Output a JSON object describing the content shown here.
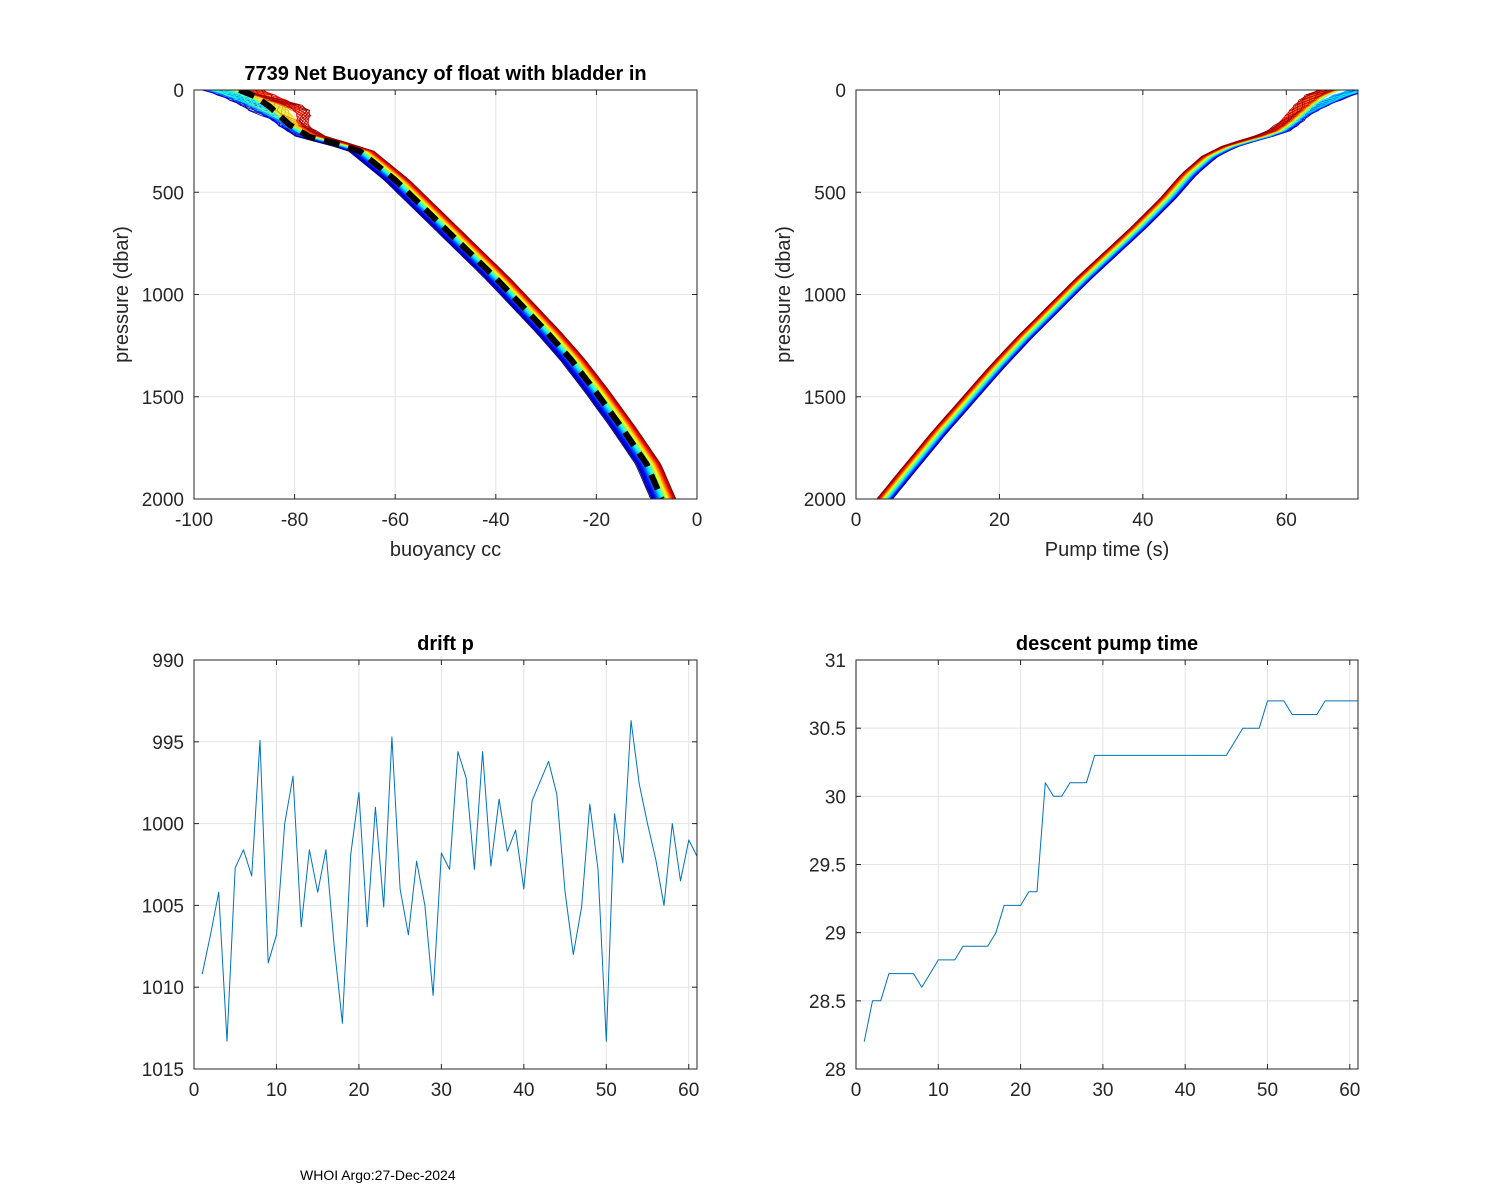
{
  "footer": "WHOI Argo:27-Dec-2024",
  "chart_data": [
    {
      "id": "buoyancy",
      "type": "line",
      "title": "7739 Net Buoyancy of float with bladder in",
      "xlabel": "buoyancy cc",
      "ylabel": "pressure (dbar)",
      "xlim": [
        -100,
        0
      ],
      "ylim": [
        0,
        2000
      ],
      "y_reversed": true,
      "xticks": [
        -100,
        -80,
        -60,
        -40,
        -20,
        0
      ],
      "yticks": [
        0,
        500,
        1000,
        1500,
        2000
      ],
      "xtick_labels": [
        "-100",
        "-80",
        "-60",
        "-40",
        "-20",
        "0"
      ],
      "ytick_labels": [
        "0",
        "500",
        "1000",
        "1500",
        "2000"
      ],
      "grid": true,
      "profile_colormap": "jet",
      "profile_count": 61,
      "mean_profile": {
        "x": [
          -91,
          -88,
          -85,
          -81,
          -77,
          -72,
          -67,
          -64,
          -60,
          -55,
          -50,
          -45,
          -40,
          -35,
          -30,
          -25,
          -20,
          -15,
          -10,
          -7
        ],
        "y": [
          0,
          30,
          80,
          170,
          230,
          260,
          300,
          360,
          440,
          560,
          680,
          800,
          920,
          1050,
          1180,
          1320,
          1480,
          1650,
          1830,
          2000
        ]
      }
    },
    {
      "id": "pumptime",
      "type": "line",
      "title": "",
      "xlabel": "Pump time (s)",
      "ylabel": "pressure (dbar)",
      "xlim": [
        0,
        70
      ],
      "ylim": [
        0,
        2000
      ],
      "y_reversed": true,
      "xticks": [
        0,
        20,
        40,
        60
      ],
      "yticks": [
        0,
        500,
        1000,
        1500,
        2000
      ],
      "xtick_labels": [
        "0",
        "20",
        "40",
        "60"
      ],
      "ytick_labels": [
        "0",
        "500",
        "1000",
        "1500",
        "2000"
      ],
      "grid": true,
      "profile_colormap": "jet",
      "profile_count": 61,
      "reference_profile": {
        "x": [
          4.5,
          8,
          12,
          16,
          20,
          24,
          28,
          32,
          36,
          40,
          44,
          47,
          50,
          53,
          56,
          59,
          61,
          63,
          65,
          67
        ],
        "y": [
          2000,
          1850,
          1680,
          1520,
          1360,
          1210,
          1070,
          930,
          800,
          670,
          530,
          410,
          320,
          270,
          240,
          210,
          160,
          90,
          30,
          0
        ]
      }
    },
    {
      "id": "drift",
      "type": "line",
      "title": "drift p",
      "xlabel": "",
      "ylabel": "",
      "xlim": [
        0,
        61
      ],
      "ylim": [
        990,
        1015
      ],
      "y_reversed": true,
      "xticks": [
        0,
        10,
        20,
        30,
        40,
        50,
        60
      ],
      "yticks": [
        990,
        995,
        1000,
        1005,
        1010,
        1015
      ],
      "xtick_labels": [
        "0",
        "10",
        "20",
        "30",
        "40",
        "50",
        "60"
      ],
      "ytick_labels": [
        "990",
        "995",
        "1000",
        "1005",
        "1010",
        "1015"
      ],
      "grid": true,
      "color": "#0072BD",
      "x": [
        1,
        2,
        3,
        4,
        5,
        6,
        7,
        8,
        9,
        10,
        11,
        12,
        13,
        14,
        15,
        16,
        17,
        18,
        19,
        20,
        21,
        22,
        23,
        24,
        25,
        26,
        27,
        28,
        29,
        30,
        31,
        32,
        33,
        34,
        35,
        36,
        37,
        38,
        39,
        40,
        41,
        42,
        43,
        44,
        45,
        46,
        47,
        48,
        49,
        50,
        51,
        52,
        53,
        54,
        55,
        56,
        57,
        58,
        59,
        60,
        61
      ],
      "values": [
        1009.2,
        1006.8,
        1004.2,
        1013.3,
        1002.7,
        1001.6,
        1003.2,
        994.9,
        1008.5,
        1006.8,
        1000,
        997.1,
        1006.3,
        1001.6,
        1004.2,
        1001.6,
        1007.5,
        1012.2,
        1001.9,
        998.1,
        1006.3,
        999,
        1005.1,
        994.7,
        1004,
        1006.8,
        1002.3,
        1005,
        1010.5,
        1001.8,
        1002.8,
        995.6,
        997.2,
        1002.8,
        995.6,
        1002.6,
        998.5,
        1001.7,
        1000.4,
        1004,
        998.6,
        997.4,
        996.2,
        998.2,
        1004.2,
        1008,
        1005.1,
        998.8,
        1002.8,
        1013.3,
        999.4,
        1002.4,
        993.7,
        997.6,
        1000,
        1002.2,
        1005,
        1000,
        1003.5,
        1001,
        1002
      ]
    },
    {
      "id": "descent",
      "type": "line",
      "title": "descent pump time",
      "xlabel": "",
      "ylabel": "",
      "xlim": [
        0,
        61
      ],
      "ylim": [
        28,
        31
      ],
      "y_reversed": false,
      "xticks": [
        0,
        10,
        20,
        30,
        40,
        50,
        60
      ],
      "yticks": [
        28,
        28.5,
        29,
        29.5,
        30,
        30.5,
        31
      ],
      "xtick_labels": [
        "0",
        "10",
        "20",
        "30",
        "40",
        "50",
        "60"
      ],
      "ytick_labels": [
        "28",
        "28.5",
        "29",
        "29.5",
        "30",
        "30.5",
        "31"
      ],
      "grid": true,
      "color": "#0072BD",
      "x": [
        1,
        2,
        3,
        4,
        5,
        6,
        7,
        8,
        9,
        10,
        11,
        12,
        13,
        14,
        15,
        16,
        17,
        18,
        19,
        20,
        21,
        22,
        23,
        24,
        25,
        26,
        27,
        28,
        29,
        30,
        31,
        32,
        33,
        34,
        35,
        36,
        37,
        38,
        39,
        40,
        41,
        42,
        43,
        44,
        45,
        46,
        47,
        48,
        49,
        50,
        51,
        52,
        53,
        54,
        55,
        56,
        57,
        58,
        59,
        60,
        61
      ],
      "values": [
        28.2,
        28.5,
        28.5,
        28.7,
        28.7,
        28.7,
        28.7,
        28.6,
        28.7,
        28.8,
        28.8,
        28.8,
        28.9,
        28.9,
        28.9,
        28.9,
        29,
        29.2,
        29.2,
        29.2,
        29.3,
        29.3,
        30.1,
        30,
        30,
        30.1,
        30.1,
        30.1,
        30.3,
        30.3,
        30.3,
        30.3,
        30.3,
        30.3,
        30.3,
        30.3,
        30.3,
        30.3,
        30.3,
        30.3,
        30.3,
        30.3,
        30.3,
        30.3,
        30.3,
        30.4,
        30.5,
        30.5,
        30.5,
        30.7,
        30.7,
        30.7,
        30.6,
        30.6,
        30.6,
        30.6,
        30.7,
        30.7,
        30.7,
        30.7,
        30.7
      ]
    }
  ]
}
